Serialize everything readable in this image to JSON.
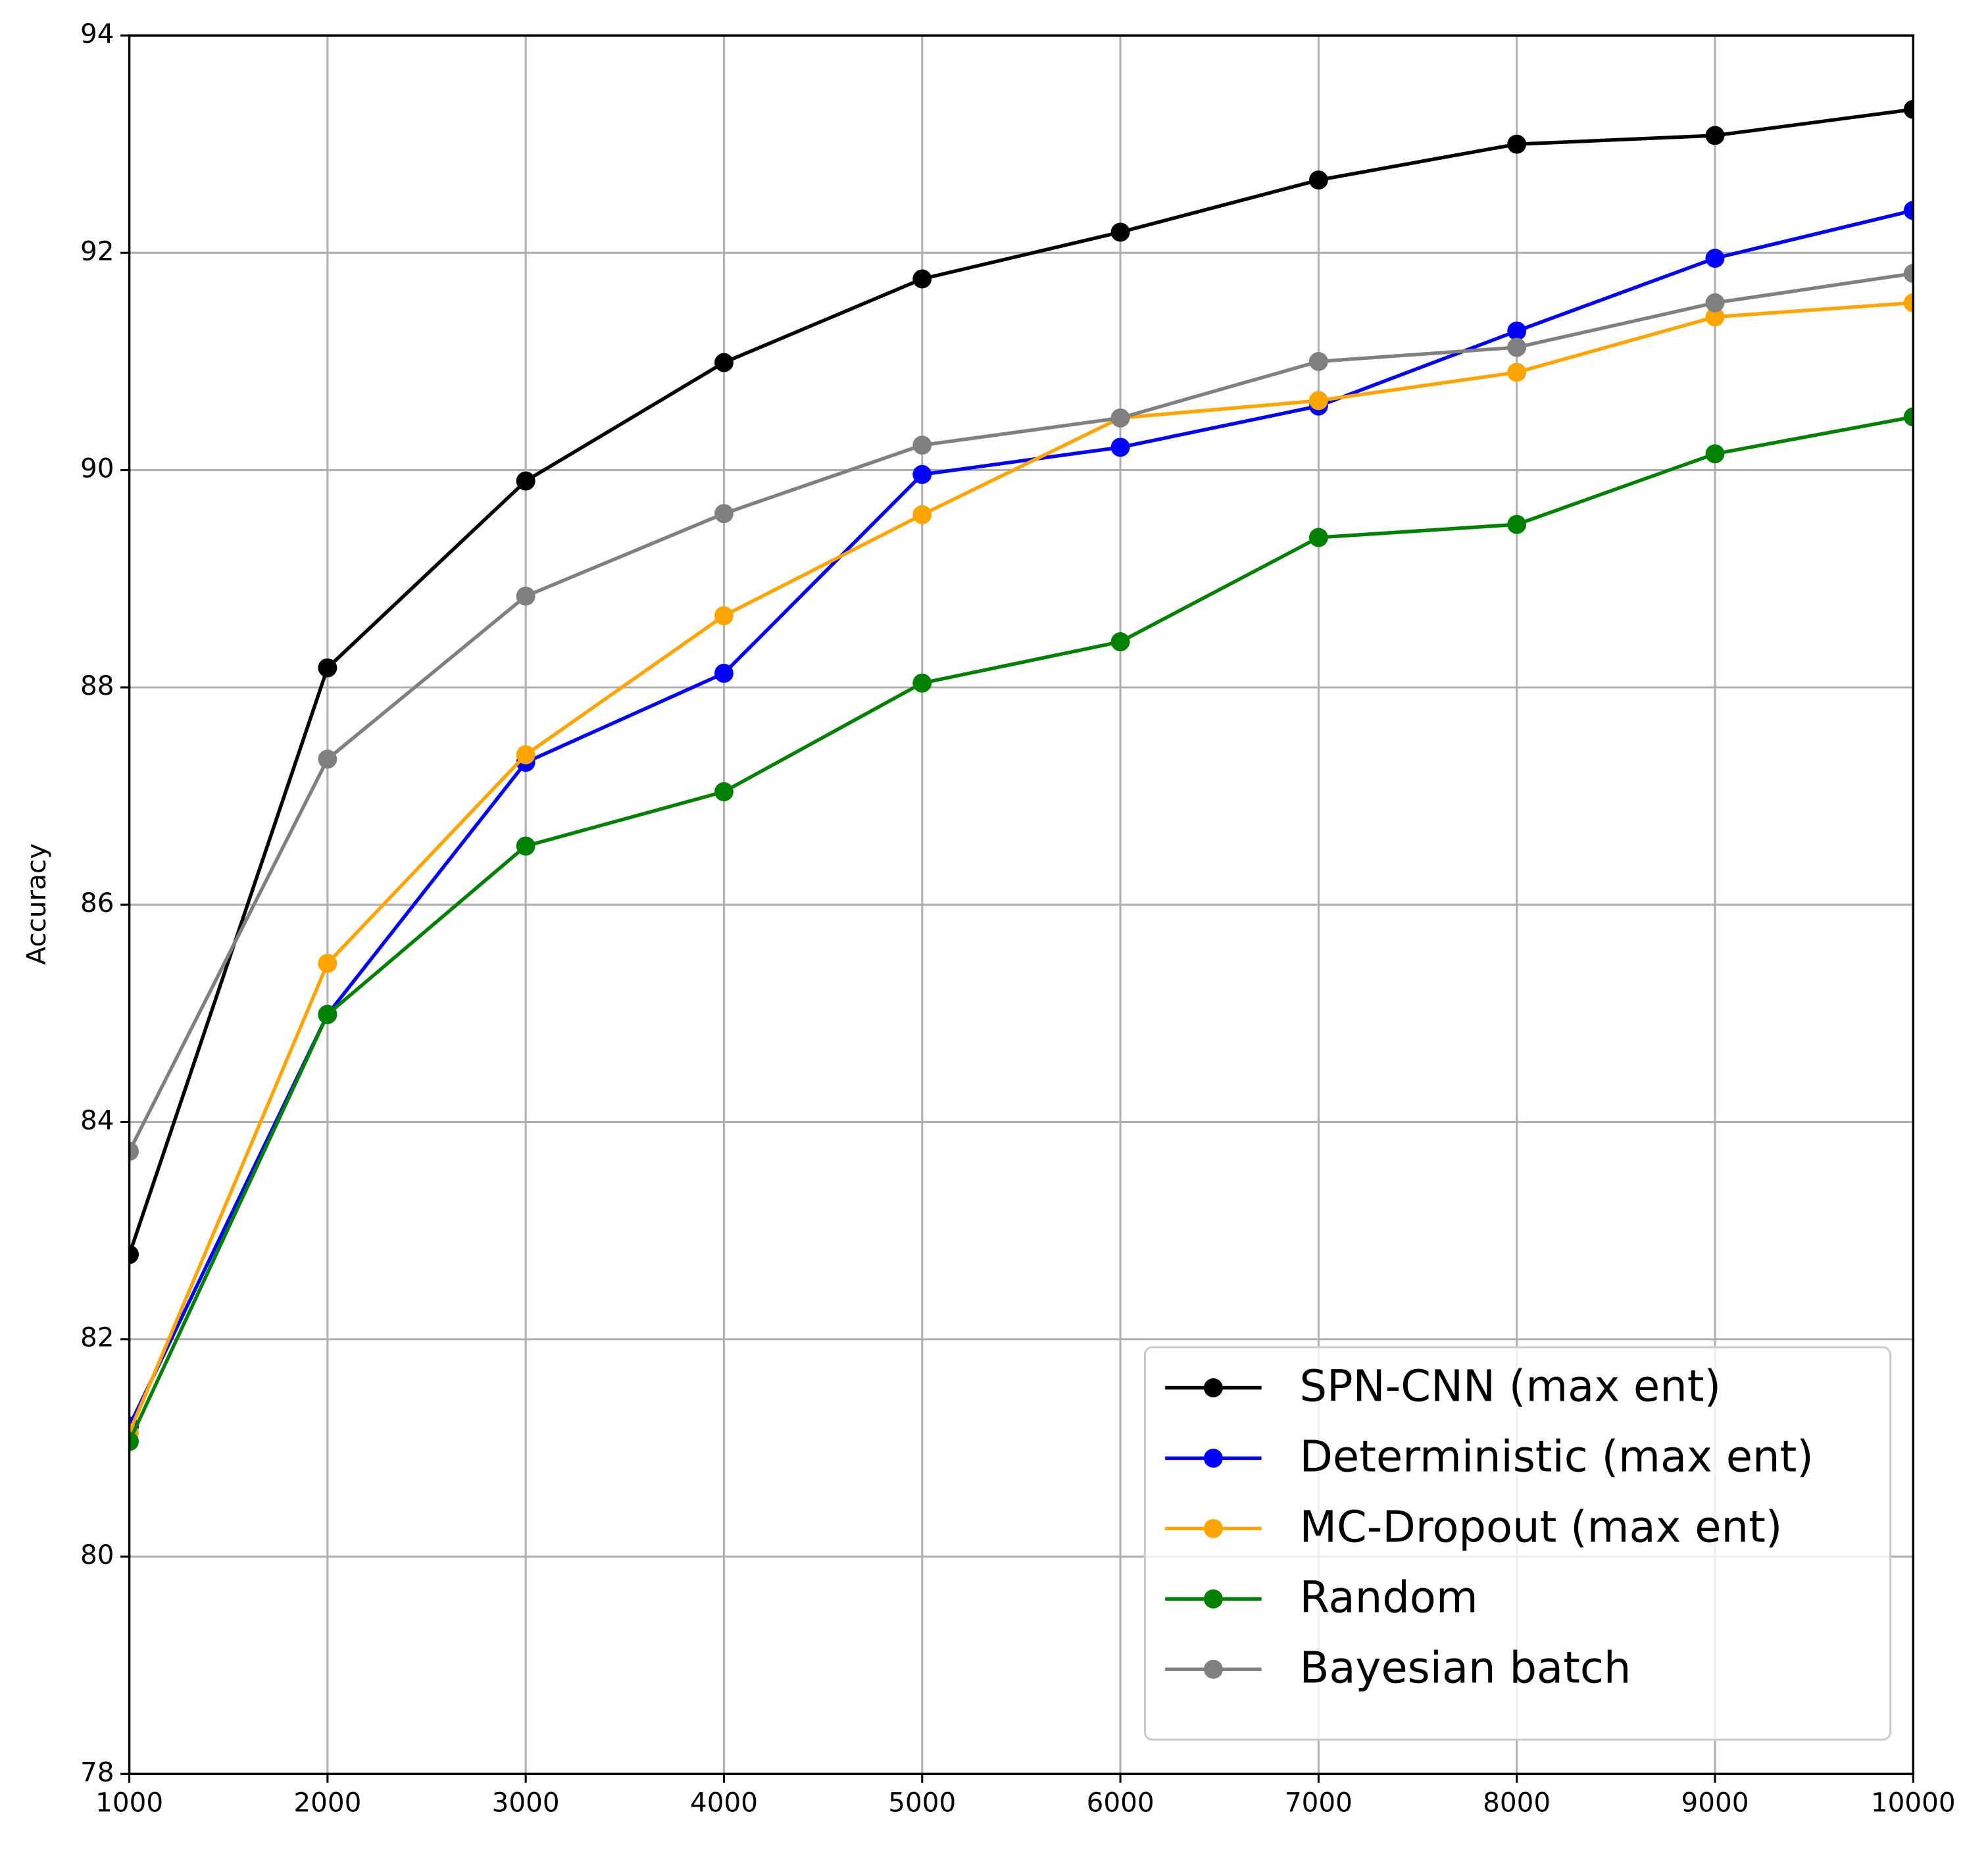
{
  "chart_data": {
    "type": "line",
    "y_label": "Accuracy",
    "x": [
      1000,
      2000,
      3000,
      4000,
      5000,
      6000,
      7000,
      8000,
      9000,
      10000
    ],
    "xlim": [
      1000,
      10000
    ],
    "xticks": [
      1000,
      2000,
      3000,
      4000,
      5000,
      6000,
      7000,
      8000,
      9000,
      10000
    ],
    "ylim": [
      78,
      94
    ],
    "yticks": [
      78,
      80,
      82,
      84,
      86,
      88,
      90,
      92,
      94
    ],
    "grid": true,
    "legend": "lower right",
    "series": [
      {
        "name": "SPN-CNN (max ent)",
        "color": "#000000",
        "values": [
          82.78,
          88.18,
          89.9,
          90.99,
          91.76,
          92.19,
          92.67,
          93.0,
          93.08,
          93.32
        ]
      },
      {
        "name": "Deterministic (max ent)",
        "color": "#0000ff",
        "values": [
          81.2,
          84.99,
          87.31,
          88.13,
          89.96,
          90.21,
          90.59,
          91.28,
          91.95,
          92.39
        ]
      },
      {
        "name": "MC-Dropout (max ent)",
        "color": "#ffa500",
        "values": [
          81.14,
          85.46,
          87.38,
          88.66,
          89.59,
          90.48,
          90.64,
          90.9,
          91.41,
          91.54
        ]
      },
      {
        "name": "Random",
        "color": "#008000",
        "values": [
          81.06,
          84.99,
          86.54,
          87.04,
          88.04,
          88.42,
          89.38,
          89.5,
          90.15,
          90.49
        ]
      },
      {
        "name": "Bayesian batch",
        "color": "#808080",
        "values": [
          83.73,
          87.34,
          88.84,
          89.6,
          90.23,
          90.48,
          91.0,
          91.13,
          91.54,
          91.81
        ]
      }
    ]
  }
}
